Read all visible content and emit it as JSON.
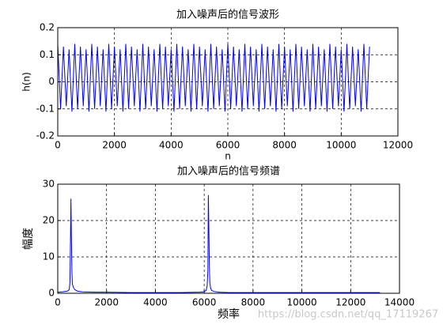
{
  "chart_data": [
    {
      "type": "line",
      "title": "加入噪声后的信号波形",
      "xlabel": "n",
      "ylabel": "h(n)",
      "xlim": [
        0,
        12000
      ],
      "xticks": [
        0,
        2000,
        4000,
        6000,
        8000,
        10000,
        12000
      ],
      "ylim": [
        -0.2,
        0.2
      ],
      "yticks": [
        -0.2,
        -0.1,
        0,
        0.1,
        0.2
      ],
      "grid": true,
      "series": [
        {
          "color": "#0000ff",
          "x": [
            0,
            100,
            200,
            300,
            400,
            500,
            600,
            700,
            800,
            900,
            1000,
            1100,
            1200,
            1300,
            1400,
            1500,
            1600,
            1700,
            1800,
            1900,
            2000,
            2100,
            2200,
            2300,
            2400,
            2500,
            2600,
            2700,
            2800,
            2900,
            3000,
            3100,
            3200,
            3300,
            3400,
            3500,
            3600,
            3700,
            3800,
            3900,
            4000,
            4100,
            4200,
            4300,
            4400,
            4500,
            4600,
            4700,
            4800,
            4900,
            5000,
            5100,
            5200,
            5300,
            5400,
            5500,
            5600,
            5700,
            5800,
            5900,
            6000,
            6100,
            6200,
            6300,
            6400,
            6500,
            6600,
            6700,
            6800,
            6900,
            7000,
            7100,
            7200,
            7300,
            7400,
            7500,
            7600,
            7700,
            7800,
            7900,
            8000,
            8100,
            8200,
            8300,
            8400,
            8500,
            8600,
            8700,
            8800,
            8900,
            9000,
            9100,
            9200,
            9300,
            9400,
            9500,
            9600,
            9700,
            9800,
            9900,
            10000,
            10100,
            10200,
            10300,
            10400,
            10500,
            10600,
            10700,
            10800,
            10900,
            11000
          ],
          "values": [
            0.14,
            -0.1,
            0.13,
            -0.09,
            0.12,
            -0.11,
            0.14,
            -0.1,
            0.13,
            -0.09,
            0.12,
            -0.11,
            0.14,
            -0.1,
            0.13,
            -0.09,
            0.12,
            -0.11,
            0.14,
            -0.1,
            0.13,
            -0.09,
            0.12,
            -0.11,
            0.14,
            -0.1,
            0.13,
            -0.09,
            0.12,
            -0.11,
            0.14,
            -0.1,
            0.13,
            -0.09,
            0.12,
            -0.11,
            0.14,
            -0.1,
            0.13,
            -0.09,
            0.12,
            -0.11,
            0.14,
            -0.1,
            0.13,
            -0.09,
            0.12,
            -0.11,
            0.14,
            -0.1,
            0.13,
            -0.09,
            0.12,
            -0.11,
            0.14,
            -0.1,
            0.13,
            -0.09,
            0.12,
            -0.11,
            0.14,
            -0.1,
            0.13,
            -0.09,
            0.12,
            -0.11,
            0.14,
            -0.1,
            0.13,
            -0.09,
            0.12,
            -0.11,
            0.14,
            -0.1,
            0.13,
            -0.09,
            0.12,
            -0.11,
            0.14,
            -0.1,
            0.13,
            -0.09,
            0.12,
            -0.11,
            0.14,
            -0.1,
            0.13,
            -0.09,
            0.12,
            -0.11,
            0.14,
            -0.1,
            0.13,
            -0.09,
            0.12,
            -0.11,
            0.14,
            -0.1,
            0.13,
            -0.09,
            0.12,
            -0.11,
            0.14,
            -0.1,
            0.13,
            -0.09,
            0.12,
            -0.11,
            0.14,
            -0.1,
            0.13
          ]
        }
      ]
    },
    {
      "type": "line",
      "title": "加入噪声后的信号频谱",
      "xlabel": "频率",
      "ylabel": "幅度",
      "xlim": [
        0,
        14000
      ],
      "xticks": [
        0,
        2000,
        4000,
        6000,
        8000,
        10000,
        12000,
        14000
      ],
      "ylim": [
        0,
        30
      ],
      "yticks": [
        0,
        10,
        20,
        30
      ],
      "grid": true,
      "series": [
        {
          "color": "#0000ff",
          "x": [
            0,
            200,
            400,
            470,
            500,
            520,
            540,
            560,
            580,
            600,
            650,
            700,
            800,
            1000,
            1500,
            2000,
            3000,
            4000,
            5000,
            5800,
            6000,
            6080,
            6120,
            6150,
            6170,
            6190,
            6210,
            6230,
            6260,
            6300,
            6400,
            6600,
            7000,
            8000,
            9000,
            10000,
            11000,
            12000,
            13200
          ],
          "values": [
            0.3,
            0.4,
            0.6,
            1,
            3,
            14,
            26,
            15,
            6,
            2.5,
            1.5,
            1,
            0.6,
            0.4,
            0.3,
            0.3,
            0.2,
            0.2,
            0.2,
            0.3,
            0.4,
            0.8,
            2,
            6,
            27,
            18,
            8,
            3,
            1.5,
            0.8,
            0.5,
            0.3,
            0.2,
            0.2,
            0.2,
            0.2,
            0.2,
            0.2,
            0.2
          ]
        }
      ]
    }
  ],
  "watermark": "https://blog.csdn.net/qq_17119267"
}
